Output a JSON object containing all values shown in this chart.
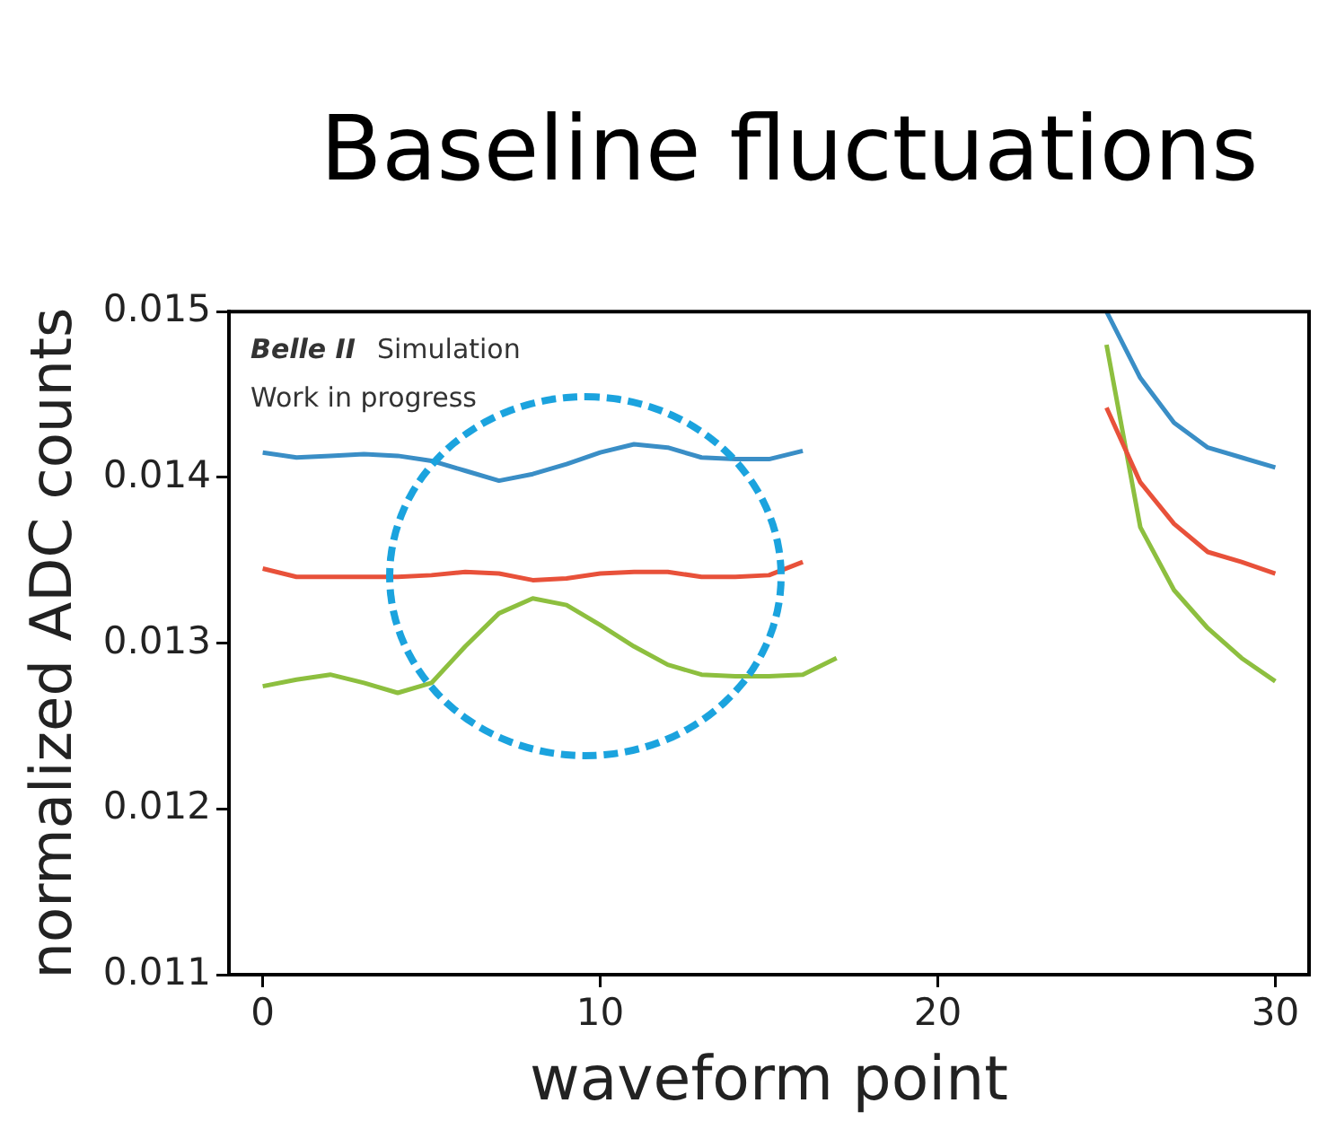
{
  "chart_data": {
    "type": "line",
    "title": "Baseline fluctuations",
    "xlabel": "waveform point",
    "ylabel": "normalized ADC counts",
    "x": [
      0,
      1,
      2,
      3,
      4,
      5,
      6,
      7,
      8,
      9,
      10,
      11,
      12,
      13,
      14,
      15,
      16,
      17,
      18,
      19,
      20,
      21,
      22,
      23,
      24,
      25,
      26,
      27,
      28,
      29,
      30
    ],
    "series": [
      {
        "color": "#3a8ec6",
        "values": [
          0.01415,
          0.01412,
          0.01413,
          0.01414,
          0.01413,
          0.0141,
          0.01404,
          0.01398,
          0.01402,
          0.01408,
          0.01415,
          0.0142,
          0.01418,
          0.01412,
          0.01411,
          0.01411,
          0.01416,
          null,
          null,
          null,
          null,
          null,
          null,
          null,
          null,
          0.015,
          0.0146,
          0.01433,
          0.01418,
          0.01412,
          0.01406
        ]
      },
      {
        "color": "#e8513a",
        "values": [
          0.01345,
          0.0134,
          0.0134,
          0.0134,
          0.0134,
          0.01341,
          0.01343,
          0.01342,
          0.01338,
          0.01339,
          0.01342,
          0.01343,
          0.01343,
          0.0134,
          0.0134,
          0.01341,
          0.01349,
          null,
          null,
          null,
          null,
          null,
          null,
          null,
          null,
          0.01442,
          0.01397,
          0.01372,
          0.01355,
          0.01349,
          0.01342
        ]
      },
      {
        "color": "#8dbf3f",
        "values": [
          0.01274,
          0.01278,
          0.01281,
          0.01276,
          0.0127,
          0.01276,
          0.01298,
          0.01318,
          0.01327,
          0.01323,
          0.01311,
          0.01298,
          0.01287,
          0.01281,
          0.0128,
          0.0128,
          0.01281,
          0.01291,
          null,
          null,
          null,
          null,
          null,
          null,
          null,
          0.0148,
          0.0137,
          0.01332,
          0.01309,
          0.01291,
          0.01277
        ]
      }
    ],
    "xlim": [
      -1,
      31
    ],
    "xticks": [
      0,
      10,
      20,
      30
    ],
    "ylim": [
      0.011,
      0.015
    ],
    "yticks": [
      0.011,
      0.012,
      0.013,
      0.014,
      0.015
    ],
    "annotations": [
      "Belle II",
      "Simulation",
      "Work in progress"
    ],
    "grid": false,
    "legend": false,
    "marker": "none",
    "line_style": "solid"
  }
}
